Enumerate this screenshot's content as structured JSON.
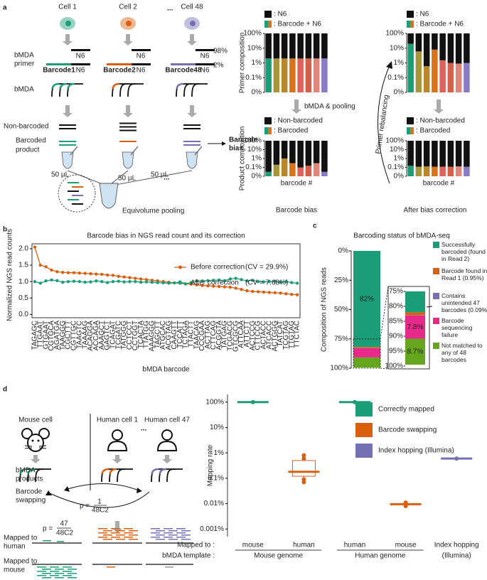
{
  "panels": {
    "a": "a",
    "b": "b",
    "c": "c",
    "d": "d"
  },
  "diagram_a": {
    "cells": [
      "Cell 1",
      "Cell 2",
      "Cell 48"
    ],
    "ellipsis": "...",
    "primer_label": [
      "bMDA",
      "primer"
    ],
    "n6": "N6",
    "barcodes": [
      "Barcode1",
      "Barcode2",
      "Barcode48"
    ],
    "fractions": [
      "98%",
      "2%"
    ],
    "bmda": "bMDA",
    "non_barcoded": "Non-barcoded",
    "barcoded_product": [
      "Barcoded",
      "product"
    ],
    "volume": "50 µL",
    "barcode_bias": [
      "Barcode",
      "bias"
    ],
    "pooling": "Equivolume pooling",
    "bmda_pooling": "bMDA & pooling",
    "rebalancing": "Primer rebalancing",
    "captions": [
      "Barcode bias",
      "After bias correction"
    ]
  },
  "diagram_d": {
    "cells": [
      "Mouse cell",
      "Human cell 1",
      "Human cell 47"
    ],
    "ellipsis": "...",
    "products": [
      "bMDA",
      "products"
    ],
    "swapping": [
      "Barcode",
      "swapping"
    ],
    "p_prefix": "p =",
    "p1": {
      "numerator": "1",
      "denominator": "48C2"
    },
    "p2": {
      "numerator": "47",
      "denominator": "48C2"
    },
    "mapped_human": [
      "Mapped to",
      "human"
    ],
    "mapped_mouse": [
      "Mapped to",
      "mouse"
    ]
  },
  "chart_data": [
    {
      "type": "stacked_bar",
      "ylabel": "Primer composition",
      "yscale": "symlog",
      "categories": [
        null,
        null,
        null,
        null,
        null,
        null,
        null,
        null
      ],
      "ylim": [
        0,
        100
      ],
      "yticks": [
        {
          "value": 0,
          "label": "0%"
        },
        {
          "value": 0.1,
          "label": "0.1%"
        },
        {
          "value": 1,
          "label": "1%"
        },
        {
          "value": 10,
          "label": "10%"
        },
        {
          "value": 100,
          "label": "100%"
        }
      ],
      "series": [
        {
          "name": ": Barcode + N6",
          "colors": [
            "#1b9e77",
            "#a6953b",
            "#b8862b",
            "#d9731a",
            "#e0605a",
            "#d4604a",
            "#e0857a",
            "#8a7cc4"
          ],
          "values": [
            2,
            2,
            2,
            2,
            2,
            2,
            2,
            2
          ]
        },
        {
          "name": ": N6",
          "color": "#111111",
          "values": [
            98,
            98,
            98,
            98,
            98,
            98,
            98,
            98
          ]
        }
      ]
    },
    {
      "type": "stacked_bar",
      "ylabel": "Product composition",
      "xlabel": "barcode #",
      "yscale": "symlog",
      "categories": [
        null,
        null,
        null,
        null,
        null,
        null,
        null,
        null
      ],
      "ylim": [
        0,
        100
      ],
      "yticks": [
        {
          "value": 0,
          "label": "0%"
        },
        {
          "value": 0.1,
          "label": "0.1%"
        },
        {
          "value": 1,
          "label": "1%"
        },
        {
          "value": 10,
          "label": "10%"
        },
        {
          "value": 100,
          "label": "100%"
        }
      ],
      "series": [
        {
          "name": ": Barcoded",
          "colors": [
            "#1b9e77",
            "#a6953b",
            "#b8862b",
            "#d9731a",
            "#e0605a",
            "#d4604a",
            "#e0857a",
            "#8a7cc4"
          ],
          "values": [
            0.05,
            0.2,
            1,
            0.3,
            0.1,
            0.15,
            0.3,
            0.05
          ]
        },
        {
          "name": ": Non-barcoded",
          "color": "#111111",
          "values": [
            99.95,
            99.8,
            99,
            99.7,
            99.9,
            99.85,
            99.7,
            99.95
          ]
        }
      ]
    },
    {
      "type": "stacked_bar",
      "yscale": "symlog",
      "categories": [
        null,
        null,
        null,
        null,
        null,
        null,
        null,
        null
      ],
      "ylim": [
        0,
        100
      ],
      "yticks": [
        {
          "value": 0,
          "label": "0%"
        },
        {
          "value": 0.1,
          "label": "0.1%"
        },
        {
          "value": 1,
          "label": "1%"
        },
        {
          "value": 10,
          "label": "10%"
        },
        {
          "value": 100,
          "label": "100%"
        }
      ],
      "series": [
        {
          "name": ": Barcode + N6",
          "colors": [
            "#1b9e77",
            "#a6953b",
            "#b8862b",
            "#d9731a",
            "#e0605a",
            "#d4604a",
            "#e0857a",
            "#8a7cc4"
          ],
          "values": [
            20,
            6,
            0.6,
            8,
            1.5,
            1,
            0.9,
            1
          ]
        },
        {
          "name": ": N6",
          "color": "#111111",
          "values": [
            80,
            94,
            99.4,
            92,
            98.5,
            99,
            99.1,
            99
          ]
        }
      ]
    },
    {
      "type": "stacked_bar",
      "xlabel": "barcode #",
      "yscale": "symlog",
      "categories": [
        null,
        null,
        null,
        null,
        null,
        null,
        null,
        null
      ],
      "ylim": [
        0,
        100
      ],
      "yticks": [
        {
          "value": 0,
          "label": "0%"
        },
        {
          "value": 0.1,
          "label": "0.1%"
        },
        {
          "value": 1,
          "label": "1%"
        },
        {
          "value": 10,
          "label": "10%"
        },
        {
          "value": 100,
          "label": "100%"
        }
      ],
      "series": [
        {
          "name": ": Barcoded",
          "colors": [
            "#1b9e77",
            "#a6953b",
            "#b8862b",
            "#d9731a",
            "#e0605a",
            "#d4604a",
            "#e0857a",
            "#8a7cc4"
          ],
          "values": [
            0.15,
            0.12,
            0.13,
            0.12,
            0.12,
            0.12,
            0.13,
            0.12
          ]
        },
        {
          "name": ": Non-barcoded",
          "color": "#111111",
          "values": [
            99.85,
            99.88,
            99.87,
            99.88,
            99.88,
            99.88,
            99.87,
            99.88
          ]
        }
      ]
    },
    {
      "type": "line",
      "title": "Barcode bias in NGS read count and its correction",
      "xlabel": "bMDA barcode",
      "ylabel": "Normalized NGS read counts",
      "categories": [
        "TAGAGC",
        "TTGAAT",
        "GTGAAT",
        "CGTGCA",
        "AGATGA",
        "TAAGGG",
        "CGCTTT",
        "CGTTGC",
        "TAAGTC",
        "TAAAAG",
        "ACAGGA",
        "ACCAGA",
        "AAAGCT",
        "GAGTCT",
        "TCAGAT",
        "TCGATC",
        "TATGGG",
        "CCTCCT",
        "CCTGGT",
        "TCACTA",
        "TTATGG",
        "AAAGGG",
        "TAGCTT",
        "ATGCAC",
        "ACGTAG",
        "CAAGTT",
        "TCCATT",
        "TCTAGA",
        "TTACTT",
        "TAACAG",
        "CCCGAA",
        "ACTTAG",
        "CTTCAG",
        "ACGGTA",
        "TATGAG",
        "TCGACG",
        "GTCGCG",
        "ATTCAA",
        "ATTCTT",
        "ACTCCG",
        "CTTCCG",
        "ACTACC",
        "ATCACC",
        "ACTGGG",
        "TATCAT",
        "TCGTAG",
        "TTGTAG",
        "TTCTAC"
      ],
      "ylim": [
        -0.1,
        2.15
      ],
      "yticks": [
        {
          "value": 0,
          "label": "0.0"
        },
        0.5,
        {
          "value": 1,
          "label": "1.0"
        },
        1.5,
        {
          "value": 2,
          "label": "2.0"
        }
      ],
      "series": [
        {
          "name": "Before correction",
          "cv": "(CV = 29.9%)",
          "color": "#d95f0e",
          "values": [
            2.05,
            1.5,
            1.45,
            1.35,
            1.3,
            1.28,
            1.27,
            1.27,
            1.26,
            1.25,
            1.24,
            1.23,
            1.22,
            1.2,
            1.19,
            1.16,
            1.14,
            1.12,
            1.1,
            1.08,
            1.06,
            1.04,
            1.02,
            1.0,
            0.98,
            0.96,
            0.95,
            0.93,
            0.92,
            0.9,
            0.88,
            0.87,
            0.86,
            0.85,
            0.84,
            0.83,
            0.8,
            0.76,
            0.72,
            0.7,
            0.69,
            0.68,
            0.67,
            0.66,
            0.65,
            0.63,
            0.61,
            0.6
          ]
        },
        {
          "name": "After correction",
          "cv": "(CV = 7.68%)",
          "color": "#1b9e77",
          "values": [
            1.0,
            0.95,
            1.02,
            1.05,
            1.03,
            0.98,
            1.0,
            1.01,
            1.0,
            0.98,
            0.99,
            1.02,
            1.0,
            0.97,
            1.0,
            1.01,
            0.99,
            1.0,
            1.0,
            0.98,
            0.99,
            0.98,
            0.97,
            0.96,
            0.95,
            0.96,
            0.99,
            0.93,
            0.97,
            1.02,
            1.02,
            1.03,
            1.04,
            1.05,
            1.03,
            1.08,
            1.1,
            1.06,
            1.02,
            1.04,
            1.0,
            0.99,
            1.0,
            1.01,
            0.98,
            1.0,
            0.97,
            0.95
          ]
        }
      ]
    },
    {
      "type": "stacked_bar_zoom",
      "title": "Barcoding status of bMDA-seq",
      "ylabel": "Composition of NGS reads",
      "inverted": true,
      "ylim": [
        0,
        100
      ],
      "yticks": [
        {
          "value": 0,
          "label": "0%"
        },
        {
          "value": 25,
          "label": "25%"
        },
        {
          "value": 50,
          "label": "50%"
        },
        {
          "value": 75,
          "label": "75%"
        },
        {
          "value": 100,
          "label": "100%"
        }
      ],
      "zoom": {
        "ylim": [
          75,
          100
        ],
        "yticks": [
          {
            "value": 75,
            "label": "75%"
          },
          {
            "value": 80,
            "label": "80%"
          },
          {
            "value": 85,
            "label": "85%"
          },
          {
            "value": 90,
            "label": "90%"
          },
          {
            "value": 95,
            "label": "95%"
          },
          {
            "value": 100,
            "label": "100%"
          }
        ]
      },
      "series": [
        {
          "name": "Successfully barcoded (found in Read 2)",
          "color": "#1b9e77",
          "values": [
            82
          ],
          "value_labels": [
            "82%"
          ]
        },
        {
          "name": "Barcode found in Read 1 (0.95%)",
          "color": "#d95f0e",
          "values": [
            0.95
          ],
          "value_labels": [
            null
          ]
        },
        {
          "name": "Contains unintended 47 barcodes (0.09%)",
          "color": "#7570b3",
          "values": [
            0.09
          ],
          "value_labels": [
            null
          ]
        },
        {
          "name": "Barcode sequencing failure",
          "color": "#e7298a",
          "values": [
            7.8
          ],
          "value_labels": [
            "7.8%"
          ]
        },
        {
          "name": "Not matched to any of 48 barcodes",
          "color": "#66a61e",
          "values": [
            8.7
          ],
          "value_labels": [
            "8.7%"
          ]
        }
      ]
    },
    {
      "type": "dot_box",
      "ylabel": "Mapping rate",
      "yscale": "log",
      "ylim": [
        0.0005,
        200
      ],
      "yticks": [
        {
          "value": 0.001,
          "label": "0.001%"
        },
        {
          "value": 0.01,
          "label": "0.01%"
        },
        {
          "value": 0.1,
          "label": "0.1%"
        },
        {
          "value": 1,
          "label": "1%"
        },
        {
          "value": 10,
          "label": "10%"
        },
        {
          "value": 100,
          "label": "100%"
        }
      ],
      "category_title": "Mapped to :",
      "group_title": "bMDA template :",
      "categories": [
        "mouse",
        "human",
        "human",
        "mouse",
        "Index hopping"
      ],
      "groups": [
        "Mouse genome",
        "Human genome",
        "(Illumina)"
      ],
      "series": [
        {
          "name": "Correctly mapped",
          "color": "#1b9e77",
          "values": [
            100,
            null,
            100,
            null,
            null
          ]
        },
        {
          "name": "Barcode swapping",
          "color": "#d95f0e",
          "values": [
            null,
            0.18,
            null,
            0.0095,
            null
          ],
          "boxes": [
            null,
            {
              "q1": 0.12,
              "q3": 0.5,
              "low": 0.07,
              "high": 0.8
            },
            null,
            null,
            null
          ],
          "points": [
            null,
            [
              0.07,
              0.09,
              0.6,
              0.8
            ],
            null,
            [
              0.008,
              0.011
            ],
            null
          ]
        },
        {
          "name": "Index hopping (Illumina)",
          "color": "#7570b3",
          "values": [
            null,
            null,
            null,
            null,
            0.6
          ]
        }
      ]
    }
  ]
}
